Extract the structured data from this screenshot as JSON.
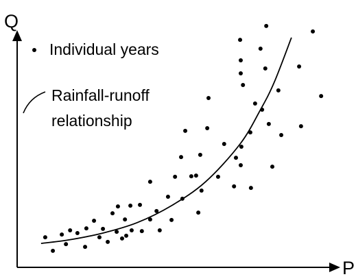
{
  "chart_data": {
    "type": "scatter",
    "xlabel": "P",
    "ylabel": "Q",
    "xlim": [
      0,
      100
    ],
    "ylim": [
      0,
      100
    ],
    "series": [
      {
        "name": "Individual years",
        "type": "scatter",
        "color": "#000000",
        "x": [
          8.8,
          11.2,
          14.0,
          15.3,
          16.6,
          18.9,
          21.3,
          21.7,
          24.1,
          25.8,
          26.9,
          28.4,
          29.9,
          31.2,
          31.6,
          32.9,
          33.8,
          34.2,
          35.5,
          35.9,
          38.5,
          39.1,
          41.7,
          41.7,
          43.7,
          44.7,
          47.3,
          48.4,
          49.5,
          51.4,
          51.8,
          52.7,
          54.6,
          56.1,
          56.8,
          57.4,
          57.8,
          59.6,
          60.0,
          63.0,
          64.9,
          68.0,
          68.6,
          69.9,
          70.1,
          70.1,
          70.8,
          70.3,
          70.1,
          73.1,
          73.3,
          74.6,
          76.3,
          76.8,
          77.8,
          78.1,
          78.9,
          80.0,
          81.9,
          82.8,
          88.4,
          89.0,
          92.7,
          95.3
        ],
        "values": [
          12.2,
          6.7,
          13.3,
          9.4,
          15.0,
          13.9,
          8.3,
          15.8,
          18.9,
          12.2,
          15.6,
          10.3,
          21.9,
          14.4,
          24.7,
          11.7,
          19.4,
          12.8,
          25.0,
          15.0,
          25.3,
          14.7,
          34.7,
          19.4,
          22.8,
          15.0,
          28.6,
          19.2,
          36.7,
          44.7,
          27.8,
          55.3,
          36.9,
          37.2,
          22.2,
          45.6,
          31.1,
          56.4,
          68.6,
          36.7,
          50.0,
          32.8,
          44.4,
          92.2,
          83.9,
          78.6,
          73.9,
          48.9,
          41.4,
          54.7,
          32.2,
          66.4,
          88.6,
          63.9,
          80.6,
          97.8,
          58.1,
          40.8,
          71.7,
          53.6,
          81.4,
          57.2,
          95.6,
          69.4
        ]
      },
      {
        "name": "Rainfall-runoff relationship",
        "type": "line",
        "color": "#000000",
        "x": [
          7.5,
          16.1,
          26.9,
          37.6,
          48.4,
          59.1,
          69.9,
          76.3,
          80.6,
          86.0
        ],
        "values": [
          9.7,
          11.1,
          13.9,
          18.1,
          25.0,
          34.7,
          50.0,
          63.9,
          75.0,
          93.1
        ]
      }
    ]
  }
}
